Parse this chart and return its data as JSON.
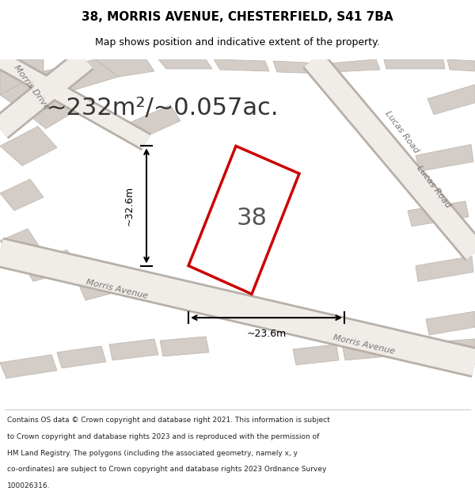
{
  "title_line1": "38, MORRIS AVENUE, CHESTERFIELD, S41 7BA",
  "title_line2": "Map shows position and indicative extent of the property.",
  "area_text": "~232m²/~0.057ac.",
  "label_38": "38",
  "dim_vertical": "~32.6m",
  "dim_horizontal": "~23.6m",
  "street_morris_drive": "Morris Drive",
  "street_morris_avenue1": "Morris Avenue",
  "street_morris_avenue2": "Morris Avenue",
  "street_lucas_road1": "Lucas Road",
  "street_lucas_road2": "Lucas Road",
  "footer_lines": [
    "Contains OS data © Crown copyright and database right 2021. This information is subject",
    "to Crown copyright and database rights 2023 and is reproduced with the permission of",
    "HM Land Registry. The polygons (including the associated geometry, namely x, y",
    "co-ordinates) are subject to Crown copyright and database rights 2023 Ordnance Survey",
    "100026316."
  ],
  "map_bg": "#e8e4e0",
  "building_fill": "#d4cdc7",
  "building_edge": "#c0b8b0",
  "highlight_fill": "#ffffff",
  "highlight_edge": "#cc0000",
  "dim_line_color": "#000000",
  "area_text_color": "#333333",
  "label_color": "#555555",
  "footer_bg": "#ffffff",
  "title_bg": "#ffffff",
  "street_color": "#777777"
}
